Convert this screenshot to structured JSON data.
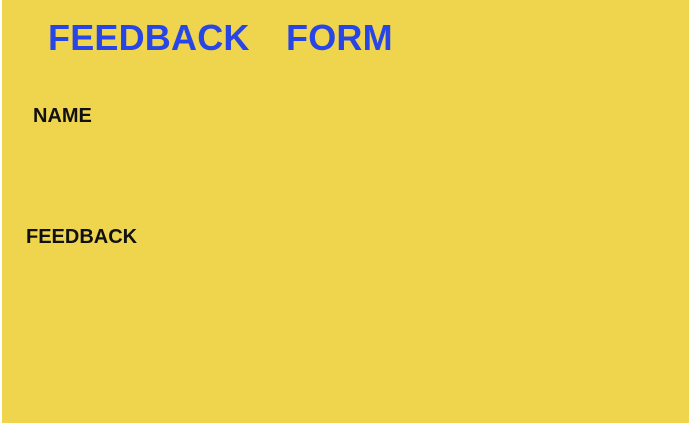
{
  "form": {
    "title": "FEEDBACK  FORM",
    "name_label": "NAME",
    "name_value": "",
    "feedback_label": "FEEDBACK",
    "feedback_value": ""
  },
  "colors": {
    "background": "#efd54d",
    "title": "#2846e6",
    "label": "#111111"
  }
}
